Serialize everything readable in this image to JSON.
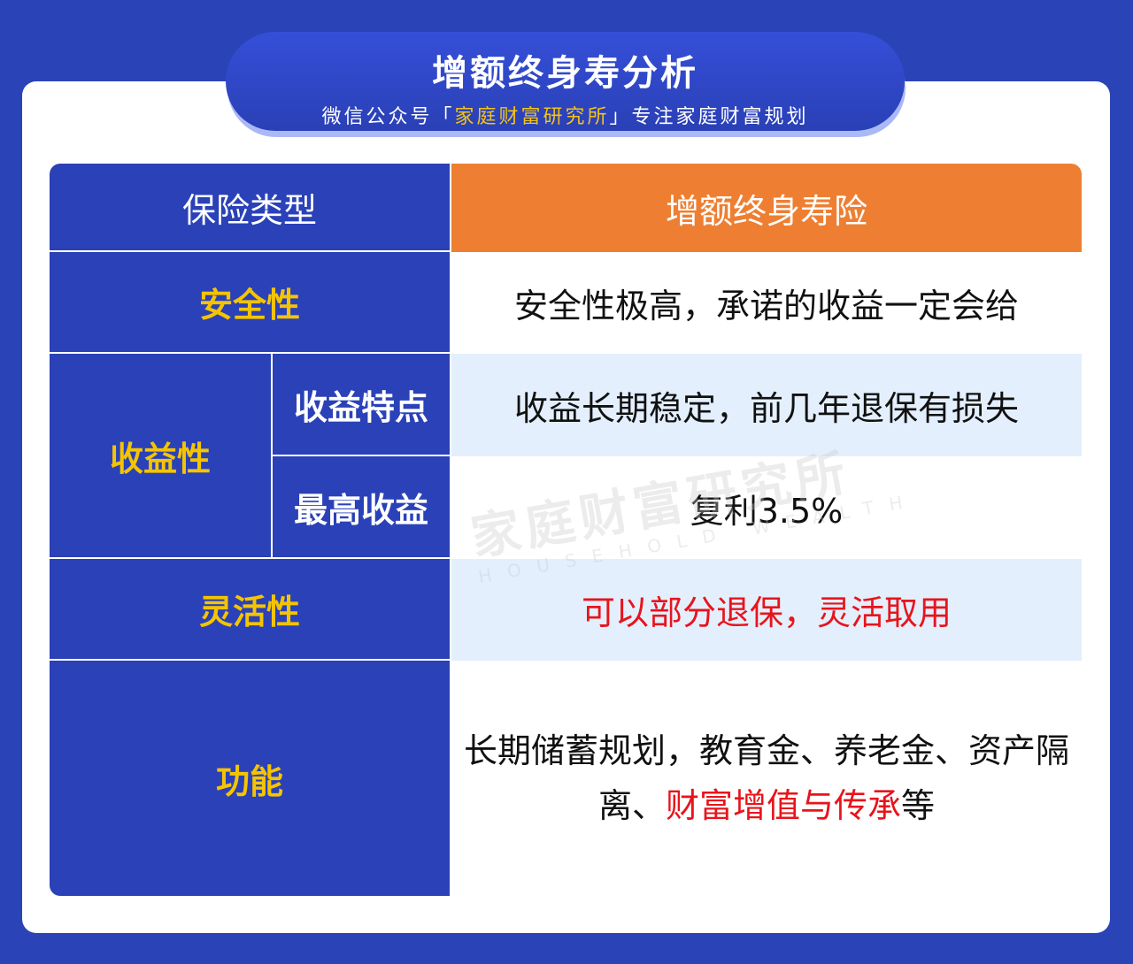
{
  "header": {
    "title": "增额终身寿分析",
    "subtitle_prefix": "微信公众号「",
    "subtitle_brand": "家庭财富研究所",
    "subtitle_suffix": "」专注家庭财富规划"
  },
  "table": {
    "col_header": "保险类型",
    "product": "增额终身寿险",
    "rows": [
      {
        "label": "安全性",
        "value": "安全性极高，承诺的收益一定会给"
      },
      {
        "label": "收益性",
        "sub": [
          {
            "label": "收益特点",
            "value": "收益长期稳定，前几年退保有损失"
          },
          {
            "label": "最高收益",
            "value": "复利3.5%"
          }
        ]
      },
      {
        "label": "灵活性",
        "value": "可以部分退保，灵活取用"
      },
      {
        "label": "功能",
        "value_part1": "长期储蓄规划，教育金、养老金、资产隔离、",
        "value_red": "财富增值与传承",
        "value_part2": "等"
      }
    ]
  },
  "watermark": {
    "cn": "家庭财富研究所",
    "en": "HOUSEHOLD WEALTH"
  },
  "colors": {
    "background": "#2a43b6",
    "cell_blue": "#2a41b8",
    "orange": "#ee7f32",
    "light_blue": "#e3effd",
    "yellow": "#f5c400",
    "red": "#e8141c"
  }
}
